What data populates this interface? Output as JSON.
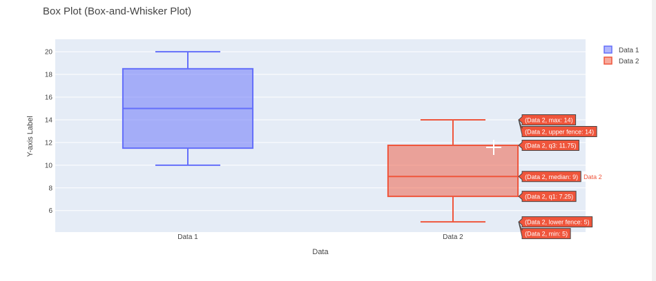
{
  "chart_data": {
    "type": "box",
    "title": "Box Plot (Box-and-Whisker Plot)",
    "xlabel": "Data",
    "ylabel": "Y-axis Label",
    "ylim": [
      4.1,
      21.1
    ],
    "yticks": [
      6,
      8,
      10,
      12,
      14,
      16,
      18,
      20
    ],
    "categories": [
      "Data 1",
      "Data 2"
    ],
    "grid": true,
    "legend_position": "top-right",
    "series": [
      {
        "name": "Data 1",
        "color": "#636efa",
        "fill": "rgba(99,110,250,0.5)",
        "stats": {
          "min": 10,
          "lower_fence": 10,
          "q1": 11.5,
          "median": 15,
          "q3": 18.5,
          "upper_fence": 20,
          "max": 20
        }
      },
      {
        "name": "Data 2",
        "color": "#ef553b",
        "fill": "rgba(239,85,59,0.5)",
        "stats": {
          "min": 5,
          "lower_fence": 5,
          "q1": 7.25,
          "median": 9,
          "q3": 11.75,
          "upper_fence": 14,
          "max": 14
        }
      }
    ],
    "hover": {
      "series": "Data 2",
      "labels": [
        {
          "key": "max",
          "text": "(Data 2, max: 14)"
        },
        {
          "key": "upper_fence",
          "text": "(Data 2, upper fence: 14)"
        },
        {
          "key": "q3",
          "text": "(Data 2, q3: 11.75)"
        },
        {
          "key": "median",
          "text": "(Data 2, median: 9)",
          "name": "Data 2"
        },
        {
          "key": "q1",
          "text": "(Data 2, q1: 7.25)"
        },
        {
          "key": "lower_fence",
          "text": "(Data 2, lower fence: 5)"
        },
        {
          "key": "min",
          "text": "(Data 2, min: 5)"
        }
      ]
    }
  }
}
